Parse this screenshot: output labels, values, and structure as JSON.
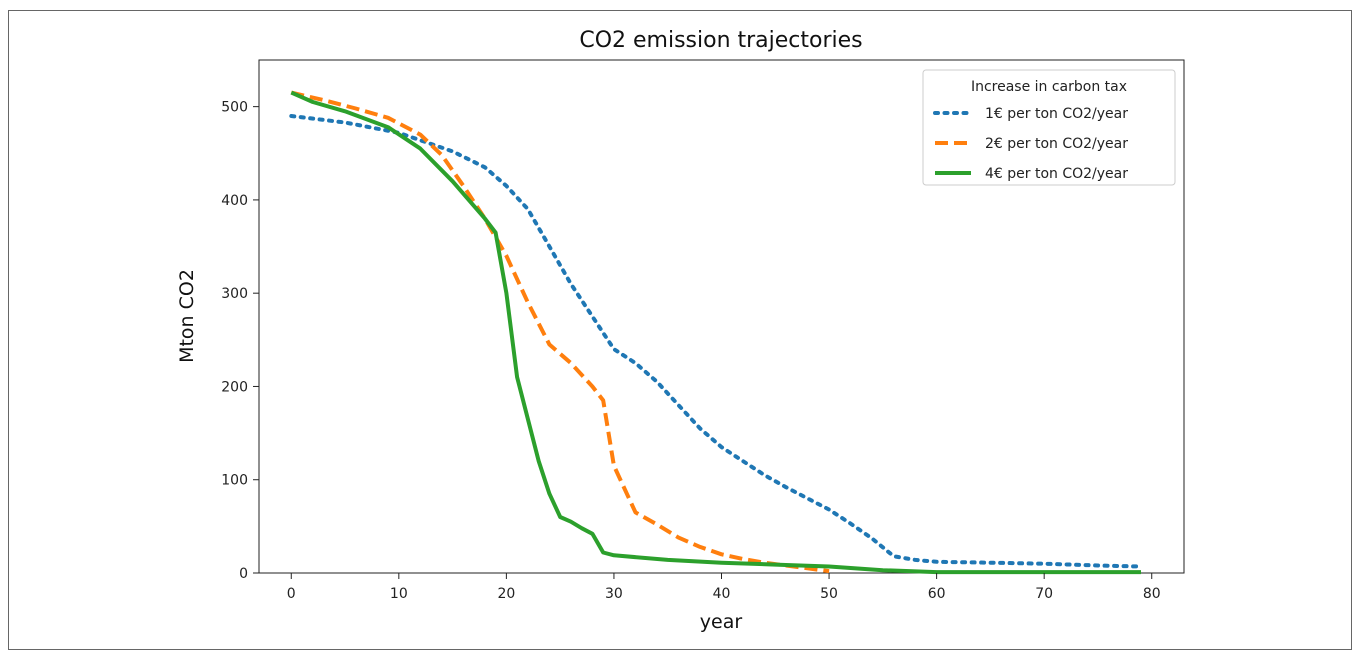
{
  "chart_data": {
    "type": "line",
    "title": "CO2 emission trajectories",
    "xlabel": "year",
    "ylabel": "Mton CO2",
    "xlim": [
      -3,
      83
    ],
    "ylim": [
      0,
      550
    ],
    "x_ticks": [
      0,
      10,
      20,
      30,
      40,
      50,
      60,
      70,
      80
    ],
    "y_ticks": [
      0,
      100,
      200,
      300,
      400,
      500
    ],
    "grid": false,
    "legend": {
      "title": "Increase in carbon tax",
      "placement": "top-right"
    },
    "series": [
      {
        "name": "1€ per ton CO2/year",
        "color": "#1f77b4",
        "style": "dotted",
        "x": [
          0,
          5,
          10,
          15,
          18,
          20,
          22,
          24,
          26,
          28,
          30,
          32,
          34,
          36,
          38,
          40,
          42,
          44,
          46,
          48,
          50,
          52,
          54,
          56,
          58,
          60,
          65,
          70,
          75,
          79
        ],
        "y": [
          490,
          483,
          472,
          452,
          435,
          415,
          390,
          350,
          310,
          275,
          240,
          225,
          205,
          180,
          155,
          135,
          120,
          105,
          92,
          80,
          68,
          53,
          37,
          18,
          14,
          12,
          11,
          10,
          8,
          7
        ]
      },
      {
        "name": "2€ per ton CO2/year",
        "color": "#ff7f0e",
        "style": "dashed",
        "x": [
          0,
          3,
          6,
          9,
          12,
          14,
          16,
          18,
          20,
          22,
          24,
          26,
          28,
          29,
          30,
          32,
          34,
          36,
          38,
          40,
          42,
          44,
          46,
          48,
          50
        ],
        "y": [
          515,
          507,
          498,
          488,
          470,
          448,
          415,
          380,
          340,
          290,
          245,
          225,
          200,
          185,
          115,
          65,
          52,
          38,
          28,
          20,
          15,
          11,
          8,
          5,
          2
        ]
      },
      {
        "name": "4€ per ton CO2/year",
        "color": "#2ca02c",
        "style": "solid",
        "x": [
          0,
          2,
          5,
          9,
          12,
          15,
          18,
          19,
          20,
          21,
          22,
          23,
          24,
          25,
          26,
          27,
          28,
          29,
          30,
          35,
          40,
          45,
          50,
          55,
          60,
          70,
          79
        ],
        "y": [
          515,
          505,
          495,
          478,
          455,
          420,
          380,
          365,
          300,
          210,
          165,
          120,
          85,
          60,
          55,
          48,
          42,
          22,
          19,
          14,
          11,
          9,
          7,
          3,
          1,
          1,
          1
        ]
      }
    ]
  }
}
